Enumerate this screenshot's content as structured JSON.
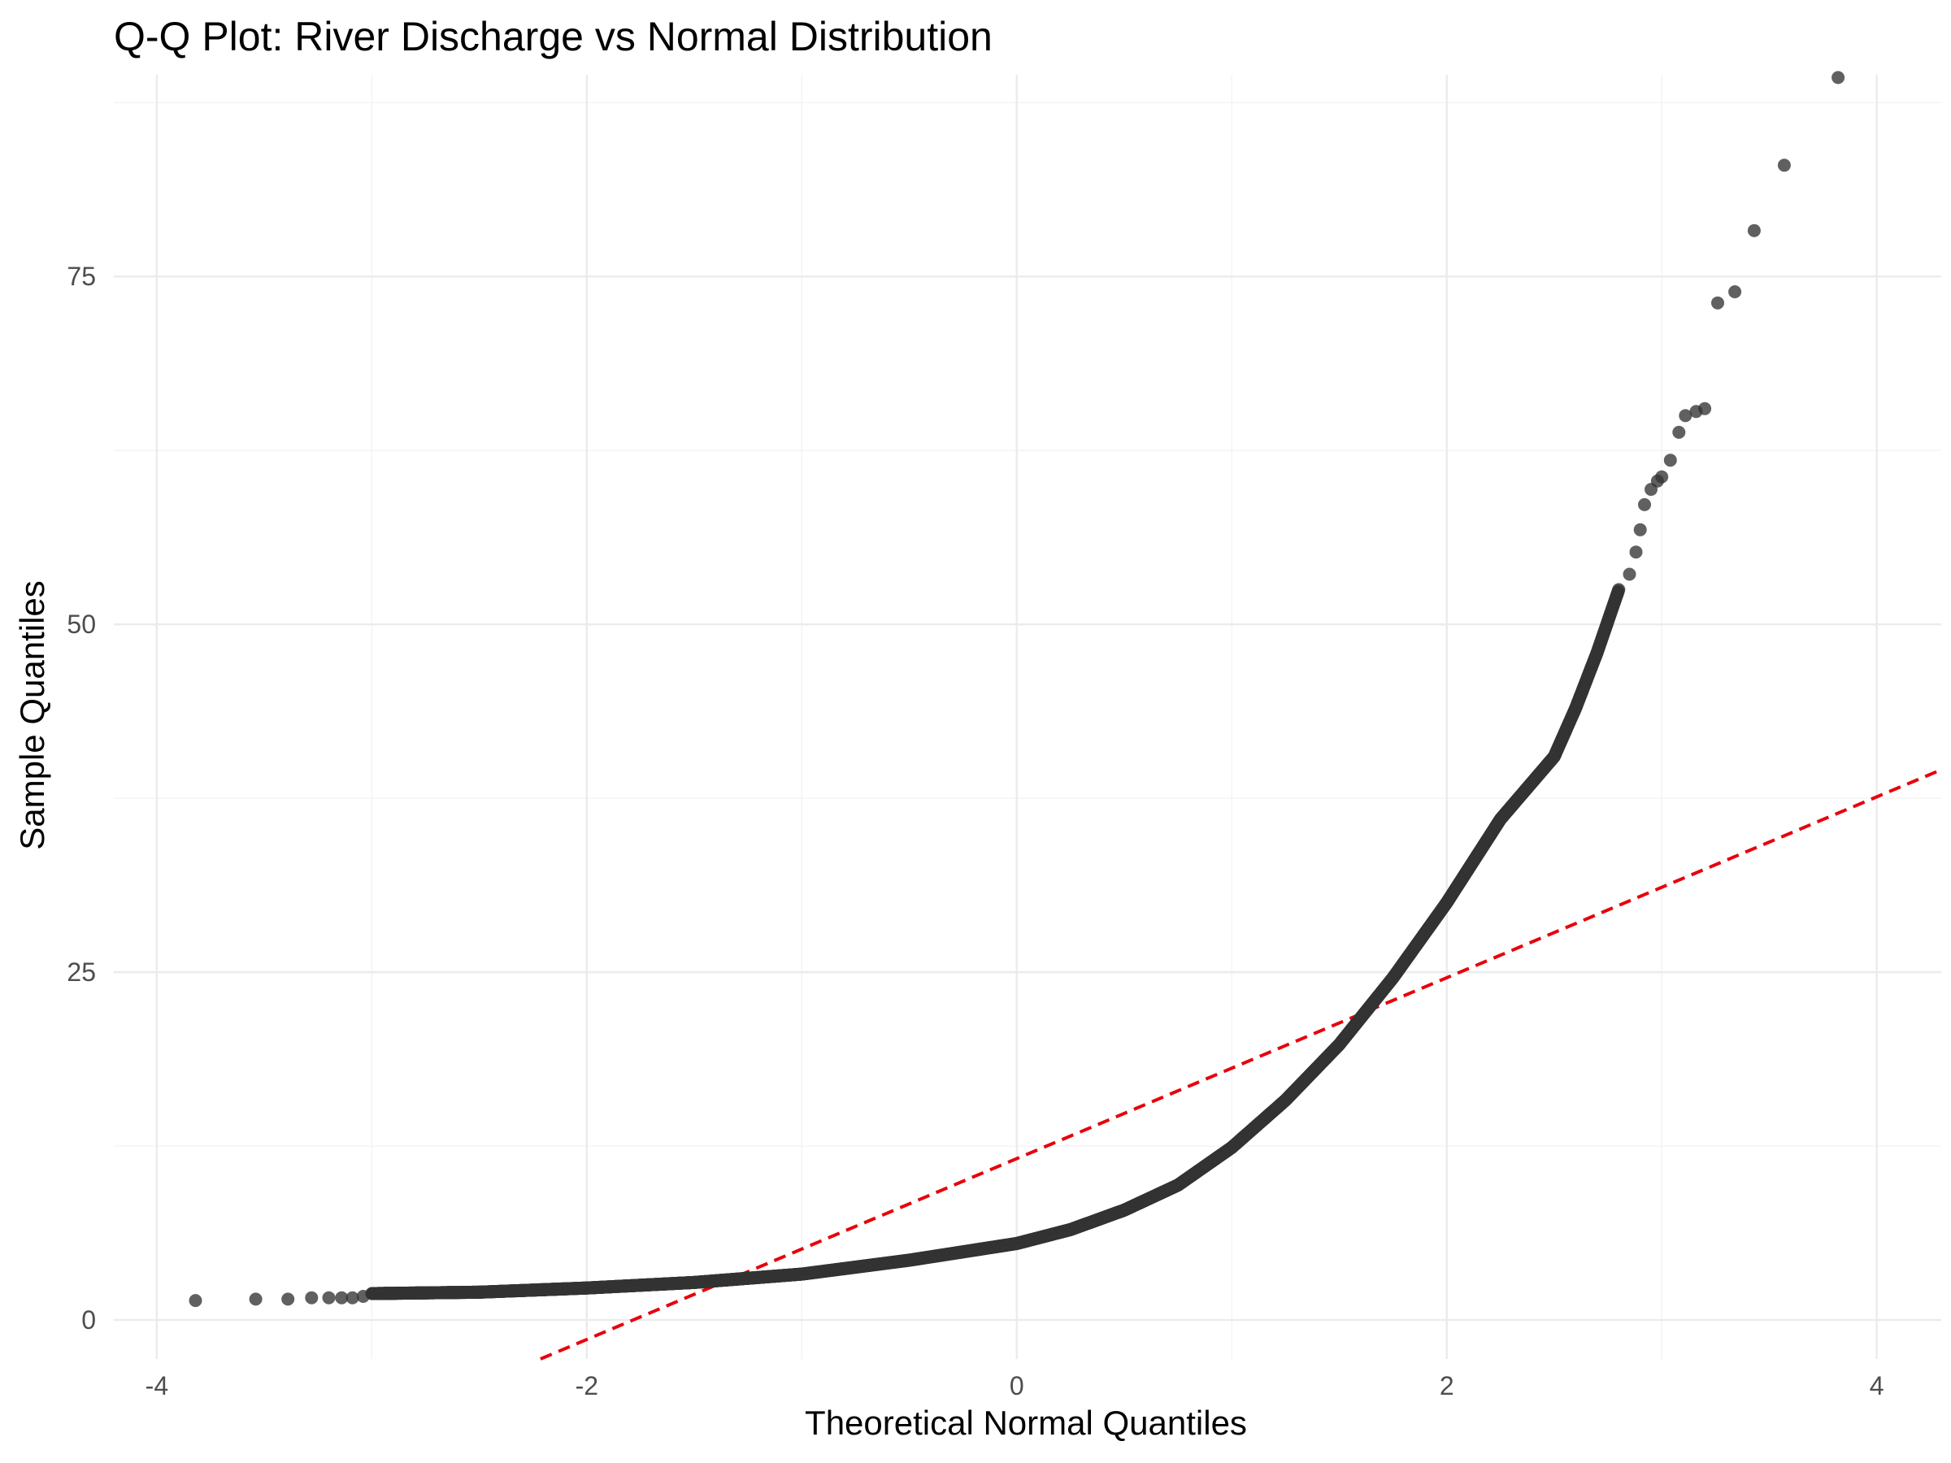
{
  "chart_data": {
    "type": "scatter",
    "title": "Q-Q Plot: River Discharge vs Normal Distribution",
    "xlabel": "Theoretical Normal Quantiles",
    "ylabel": "Sample Quantiles",
    "xlim": [
      -4.2,
      4.3
    ],
    "ylim": [
      -2.8,
      89.5
    ],
    "x_ticks": [
      -4,
      -2,
      0,
      2,
      4
    ],
    "x_tick_labels": [
      "-4",
      "-2",
      "0",
      "2",
      "4"
    ],
    "y_ticks": [
      0,
      25,
      50,
      75
    ],
    "y_tick_labels": [
      "0",
      "25",
      "50",
      "75"
    ],
    "grid": true,
    "point_color": "#333333",
    "reference_line": {
      "color": "#e8000b",
      "style": "dashed",
      "intercept": 11.6,
      "slope": 6.5
    },
    "curve_anchor_points": [
      [
        -3.0,
        1.9
      ],
      [
        -2.5,
        2.0
      ],
      [
        -2.0,
        2.3
      ],
      [
        -1.5,
        2.7
      ],
      [
        -1.0,
        3.3
      ],
      [
        -0.5,
        4.3
      ],
      [
        0.0,
        5.5
      ],
      [
        0.25,
        6.5
      ],
      [
        0.5,
        7.9
      ],
      [
        0.75,
        9.7
      ],
      [
        1.0,
        12.4
      ],
      [
        1.25,
        15.8
      ],
      [
        1.5,
        19.8
      ],
      [
        1.75,
        24.6
      ],
      [
        2.0,
        30.0
      ],
      [
        2.25,
        36.0
      ],
      [
        2.5,
        40.5
      ],
      [
        2.6,
        44.0
      ],
      [
        2.7,
        48.0
      ],
      [
        2.8,
        52.5
      ]
    ],
    "curve_point_count": 2800,
    "tail_points_low": [
      [
        -3.82,
        1.4
      ],
      [
        -3.54,
        1.5
      ],
      [
        -3.39,
        1.5
      ],
      [
        -3.28,
        1.6
      ],
      [
        -3.2,
        1.6
      ],
      [
        -3.14,
        1.6
      ],
      [
        -3.09,
        1.6
      ],
      [
        -3.04,
        1.7
      ]
    ],
    "tail_points_high": [
      [
        2.85,
        53.6
      ],
      [
        2.88,
        55.2
      ],
      [
        2.9,
        56.8
      ],
      [
        2.92,
        58.6
      ],
      [
        2.95,
        59.7
      ],
      [
        2.98,
        60.3
      ],
      [
        3.0,
        60.6
      ],
      [
        3.04,
        61.8
      ],
      [
        3.08,
        63.8
      ],
      [
        3.11,
        65.0
      ],
      [
        3.16,
        65.3
      ],
      [
        3.2,
        65.5
      ],
      [
        3.26,
        73.1
      ],
      [
        3.34,
        73.9
      ],
      [
        3.43,
        78.3
      ],
      [
        3.57,
        83.0
      ],
      [
        3.82,
        89.3
      ]
    ]
  }
}
